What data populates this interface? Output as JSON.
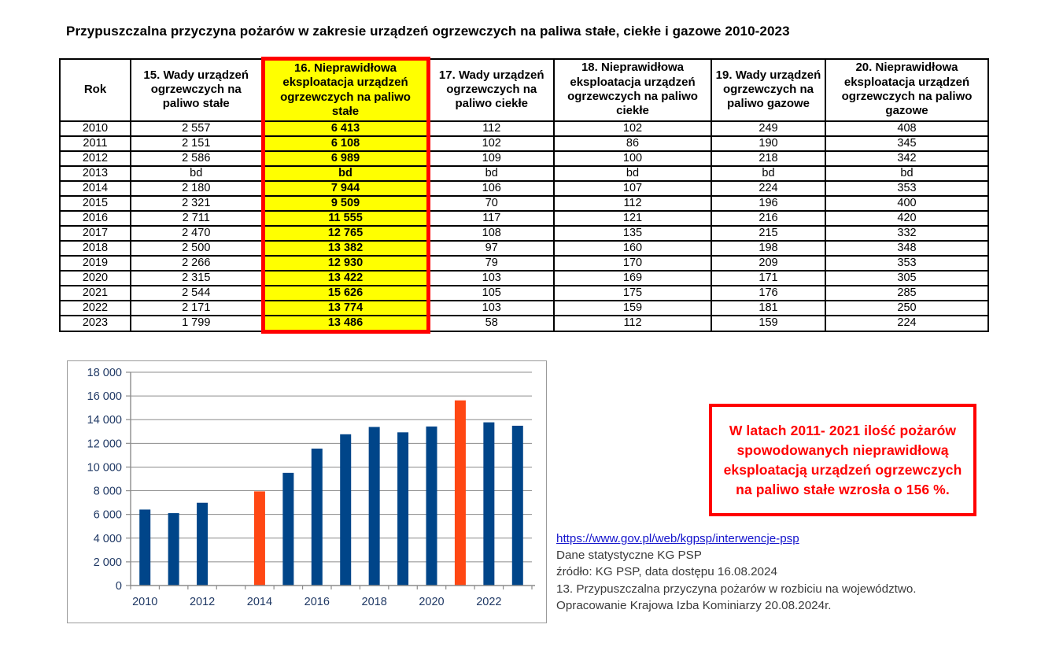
{
  "title": "Przypuszczalna przyczyna pożarów w zakresie urządzeń ogrzewczych na paliwa stałe, ciekłe i gazowe 2010-2023",
  "table": {
    "columns": [
      {
        "label": "Rok",
        "highlight": false
      },
      {
        "label": "15. Wady urządzeń ogrzewczych na paliwo stałe",
        "highlight": false
      },
      {
        "label": "16. Nieprawidłowa eksploatacja urządzeń ogrzewczych na paliwo stałe",
        "highlight": true
      },
      {
        "label": "17. Wady urządzeń ogrzewczych na paliwo ciekłe",
        "highlight": false
      },
      {
        "label": "18. Nieprawidłowa eksploatacja urządzeń ogrzewczych na paliwo ciekłe",
        "highlight": false
      },
      {
        "label": "19. Wady urządzeń ogrzewczych na paliwo gazowe",
        "highlight": false
      },
      {
        "label": "20. Nieprawidłowa eksploatacja urządzeń ogrzewczych na paliwo gazowe",
        "highlight": false
      }
    ],
    "rows": [
      [
        "2010",
        "2 557",
        "6 413",
        "112",
        "102",
        "249",
        "408"
      ],
      [
        "2011",
        "2 151",
        "6 108",
        "102",
        "86",
        "190",
        "345"
      ],
      [
        "2012",
        "2 586",
        "6 989",
        "109",
        "100",
        "218",
        "342"
      ],
      [
        "2013",
        "bd",
        "bd",
        "bd",
        "bd",
        "bd",
        "bd"
      ],
      [
        "2014",
        "2 180",
        "7 944",
        "106",
        "107",
        "224",
        "353"
      ],
      [
        "2015",
        "2 321",
        "9 509",
        "70",
        "112",
        "196",
        "400"
      ],
      [
        "2016",
        "2 711",
        "11 555",
        "117",
        "121",
        "216",
        "420"
      ],
      [
        "2017",
        "2 470",
        "12 765",
        "108",
        "135",
        "215",
        "332"
      ],
      [
        "2018",
        "2 500",
        "13 382",
        "97",
        "160",
        "198",
        "348"
      ],
      [
        "2019",
        "2 266",
        "12 930",
        "79",
        "170",
        "209",
        "353"
      ],
      [
        "2020",
        "2 315",
        "13 422",
        "103",
        "169",
        "171",
        "305"
      ],
      [
        "2021",
        "2 544",
        "15 626",
        "105",
        "175",
        "176",
        "285"
      ],
      [
        "2022",
        "2 171",
        "13 774",
        "103",
        "159",
        "181",
        "250"
      ],
      [
        "2023",
        "1 799",
        "13 486",
        "58",
        "112",
        "159",
        "224"
      ]
    ]
  },
  "chart_data": {
    "type": "bar",
    "title": "",
    "xlabel": "",
    "ylabel": "",
    "categories": [
      2010,
      2011,
      2012,
      2013,
      2014,
      2015,
      2016,
      2017,
      2018,
      2019,
      2020,
      2021,
      2022,
      2023
    ],
    "values": [
      6413,
      6108,
      6989,
      null,
      7944,
      9509,
      11555,
      12765,
      13382,
      12930,
      13422,
      15626,
      13774,
      13486
    ],
    "highlight_years": [
      2014,
      2021
    ],
    "bar_color": "#004589",
    "highlight_color": "#FF4713",
    "ylim": [
      0,
      18000
    ],
    "ytick_step": 2000,
    "ytick_labels": [
      "0",
      "2 000",
      "4 000",
      "6 000",
      "8 000",
      "10 000",
      "12 000",
      "14 000",
      "16 000",
      "18 000"
    ],
    "xtick_labels": [
      "2010",
      "2012",
      "2014",
      "2016",
      "2018",
      "2020",
      "2022"
    ],
    "grid": true,
    "legend_position": "none",
    "axis_color": "#8c8c8c",
    "label_color": "#1F3864"
  },
  "note_box": {
    "text": "W latach  2011- 2021 ilość pożarów spowodowanych nieprawidłową eksploatacją urządzeń ogrzewczych na paliwo stałe wzrosła o 156 %.",
    "color": "#FF0000"
  },
  "sources": {
    "link": "https://www.gov.pl/web/kgpsp/interwencje-psp",
    "lines": [
      "Dane statystyczne KG PSP",
      "źródło: KG PSP, data dostępu 16.08.2024",
      "13. Przypuszczalna przyczyna pożarów w rozbiciu na województwo.",
      "Opracowanie Krajowa Izba Kominiarzy  20.08.2024r."
    ]
  }
}
